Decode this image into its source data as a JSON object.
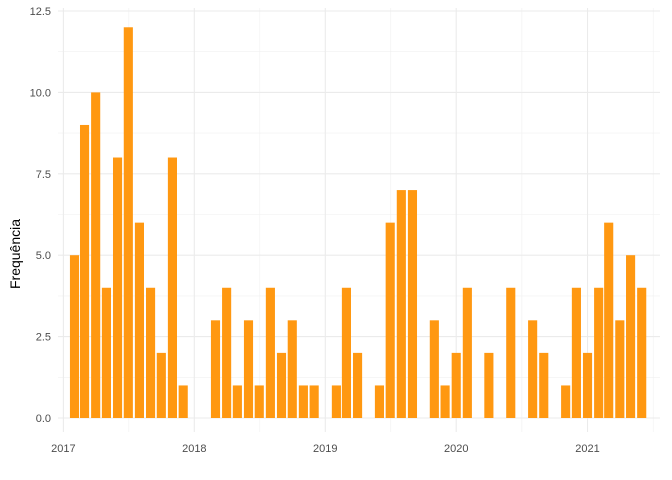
{
  "chart_data": {
    "type": "bar",
    "title": "",
    "xlabel": "",
    "ylabel": "Frequência",
    "bar_color": "#FF9811",
    "grid": true,
    "ylim": [
      0,
      12.5
    ],
    "y_ticks": [
      0.0,
      2.5,
      5.0,
      7.5,
      10.0,
      12.5
    ],
    "y_tick_labels": [
      "0.0",
      "2.5",
      "5.0",
      "7.5",
      "10.0",
      "12.5"
    ],
    "x_ticks": [
      "2017-01-01",
      "2018-01-01",
      "2019-01-01",
      "2020-01-01",
      "2021-01-01"
    ],
    "x_tick_labels": [
      "2017",
      "2018",
      "2019",
      "2020",
      "2021"
    ],
    "xlim": [
      "2016-12-17",
      "2021-07-22"
    ],
    "categories": [
      "2017-02",
      "2017-03",
      "2017-04",
      "2017-05",
      "2017-06",
      "2017-07",
      "2017-08",
      "2017-09",
      "2017-10",
      "2017-11",
      "2017-12",
      "2018-03",
      "2018-04",
      "2018-05",
      "2018-06",
      "2018-07",
      "2018-08",
      "2018-09",
      "2018-10",
      "2018-11",
      "2018-12",
      "2019-02",
      "2019-03",
      "2019-04",
      "2019-06",
      "2019-07",
      "2019-08",
      "2019-09",
      "2019-11",
      "2019-12",
      "2020-01",
      "2020-02",
      "2020-04",
      "2020-06",
      "2020-08",
      "2020-09",
      "2020-11",
      "2020-12",
      "2021-01",
      "2021-02",
      "2021-03",
      "2021-04",
      "2021-05",
      "2021-06"
    ],
    "values": [
      5,
      9,
      10,
      4,
      8,
      12,
      6,
      4,
      2,
      8,
      1,
      3,
      4,
      1,
      3,
      1,
      4,
      2,
      3,
      1,
      1,
      1,
      4,
      2,
      1,
      6,
      7,
      7,
      3,
      1,
      2,
      4,
      2,
      4,
      3,
      2,
      1,
      4,
      2,
      4,
      6,
      3,
      5,
      4
    ]
  }
}
